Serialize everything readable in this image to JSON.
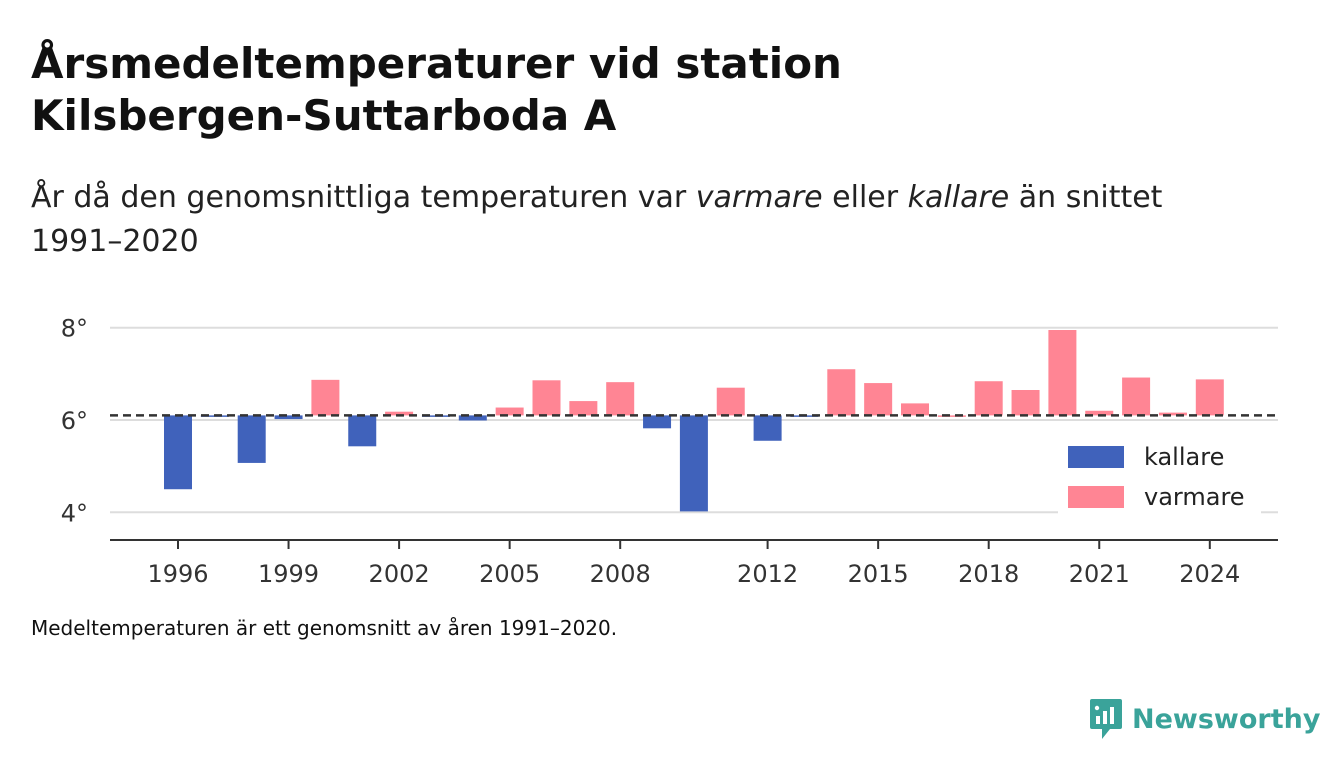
{
  "title_line1": "Årsmedeltemperaturer vid station",
  "title_line2": "Kilsbergen-Suttarboda A",
  "subtitle": {
    "part1": "År då den genomsnittliga temperaturen var ",
    "em1": "varmare",
    "part2": " eller ",
    "em2": "kallare",
    "part3": " än snittet 1991–2020"
  },
  "footnote": "Medeltemperaturen är ett genomsnitt av åren 1991–2020.",
  "brand": {
    "name": "Newsworthy",
    "icon": "newsworthy-logo-icon"
  },
  "colors": {
    "kallare": "#4062bb",
    "varmare": "#ff8594",
    "baseline": "#333333",
    "grid": "#dddddd"
  },
  "legend": [
    {
      "key": "kallare",
      "label": "kallare"
    },
    {
      "key": "varmare",
      "label": "varmare"
    }
  ],
  "chart_data": {
    "type": "bar",
    "baseline": 6.1,
    "ylim": [
      3.4,
      8.6
    ],
    "yticks": [
      4,
      6,
      8
    ],
    "ytick_labels": [
      "4°",
      "6°",
      "8°"
    ],
    "xticks": [
      1996,
      1999,
      2002,
      2005,
      2008,
      2012,
      2015,
      2018,
      2021,
      2024
    ],
    "legend_position": "bottom-right",
    "grid": true,
    "x": [
      1996,
      1997,
      1998,
      1999,
      2000,
      2001,
      2002,
      2003,
      2004,
      2005,
      2006,
      2007,
      2008,
      2009,
      2010,
      2011,
      2012,
      2013,
      2014,
      2015,
      2016,
      2017,
      2018,
      2019,
      2020,
      2021,
      2022,
      2023,
      2024
    ],
    "values": [
      4.5,
      6.08,
      5.07,
      6.02,
      6.87,
      5.43,
      6.18,
      6.08,
      5.99,
      6.27,
      6.86,
      6.41,
      6.82,
      5.82,
      4.02,
      6.7,
      5.55,
      6.08,
      7.1,
      6.8,
      6.36,
      6.1,
      6.84,
      6.65,
      7.95,
      6.2,
      6.92,
      6.16,
      6.88
    ]
  }
}
